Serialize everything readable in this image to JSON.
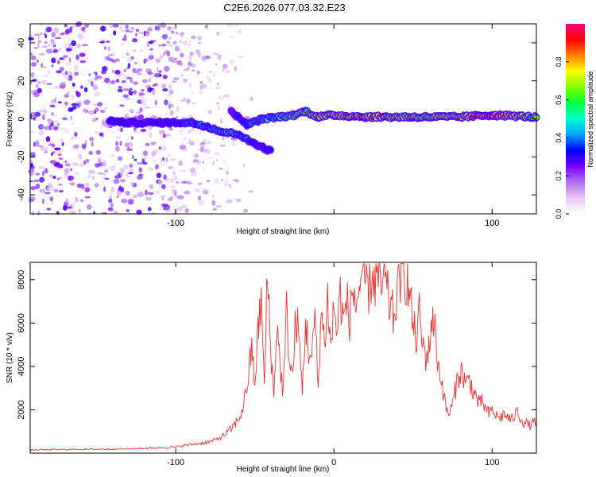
{
  "page_title": "C2E6.2026.077.03.32.E23",
  "chart_data": [
    {
      "type": "heatmap",
      "title": "C2E6.2026.077.03.32.E23",
      "xlabel": "Height of straight line (km)",
      "ylabel": "Frequency (Hz)",
      "xlim": [
        -192,
        128
      ],
      "ylim": [
        -50,
        50
      ],
      "x_ticks": [
        -100,
        0,
        100
      ],
      "x_tick_labels": [
        "-100",
        "",
        "100"
      ],
      "y_ticks": [
        -40,
        -20,
        0,
        20,
        40
      ],
      "y_tick_labels": [
        "-40",
        "-20",
        "0",
        "20",
        "40"
      ],
      "colorbar": {
        "label": "Normalized spectral amplitude",
        "range": [
          0,
          1
        ],
        "ticks": [
          0.0,
          0.2,
          0.4,
          0.6,
          0.8
        ],
        "tick_labels": [
          "0.0",
          "0.2",
          "0.4",
          "0.6",
          "0.8"
        ],
        "colors": [
          "#ffffff",
          "#e8c8f4",
          "#b070ee",
          "#7a00ff",
          "#0000ff",
          "#00a0ff",
          "#00ffd0",
          "#00ff40",
          "#80ff00",
          "#ffff00",
          "#ff8000",
          "#ff0000",
          "#ff0080"
        ]
      },
      "band": {
        "description_points": [
          {
            "x": -142,
            "y": -1,
            "v": 0.35
          },
          {
            "x": -132,
            "y": -2,
            "v": 0.3
          },
          {
            "x": -105,
            "y": -2,
            "v": 0.3
          },
          {
            "x": -90,
            "y": -2,
            "v": 0.4
          },
          {
            "x": -80,
            "y": -4,
            "v": 0.45
          },
          {
            "x": -70,
            "y": -7,
            "v": 0.5
          },
          {
            "x": -60,
            "y": -8,
            "v": 0.45
          },
          {
            "x": -55,
            "y": -11,
            "v": 0.4
          },
          {
            "x": -50,
            "y": -13,
            "v": 0.35
          },
          {
            "x": -45,
            "y": -15,
            "v": 0.3
          },
          {
            "x": -40,
            "y": -17,
            "v": 0.3
          },
          {
            "x": -65,
            "y": 4,
            "v": 0.25
          },
          {
            "x": -55,
            "y": -3,
            "v": 0.4
          },
          {
            "x": -45,
            "y": 0,
            "v": 0.45
          },
          {
            "x": -35,
            "y": 1,
            "v": 0.5
          },
          {
            "x": -25,
            "y": 2,
            "v": 0.6
          },
          {
            "x": -18,
            "y": 4,
            "v": 0.7
          },
          {
            "x": -10,
            "y": 1,
            "v": 0.75
          },
          {
            "x": 0,
            "y": 2,
            "v": 0.8
          },
          {
            "x": 20,
            "y": 1,
            "v": 0.85
          },
          {
            "x": 50,
            "y": 1,
            "v": 0.7
          },
          {
            "x": 80,
            "y": 1,
            "v": 0.75
          },
          {
            "x": 100,
            "y": 2,
            "v": 0.95
          },
          {
            "x": 128,
            "y": 1,
            "v": 0.6
          }
        ]
      }
    },
    {
      "type": "line",
      "xlabel": "Height of straight line (km)",
      "ylabel": "SNR (10 * v/v)",
      "xlim": [
        -192,
        128
      ],
      "ylim": [
        0,
        8800
      ],
      "x_ticks": [
        -100,
        0,
        100
      ],
      "x_tick_labels": [
        "-100",
        "0",
        "100"
      ],
      "y_ticks": [
        2000,
        4000,
        6000,
        8000
      ],
      "y_tick_labels": [
        "2000",
        "4000",
        "6000",
        "8000"
      ],
      "series": [
        {
          "name": "SNR",
          "color": "#ee3030",
          "points": [
            [
              -192,
              150
            ],
            [
              -170,
              170
            ],
            [
              -150,
              180
            ],
            [
              -130,
              200
            ],
            [
              -110,
              250
            ],
            [
              -100,
              280
            ],
            [
              -95,
              350
            ],
            [
              -90,
              400
            ],
            [
              -85,
              450
            ],
            [
              -80,
              500
            ],
            [
              -75,
              600
            ],
            [
              -70,
              800
            ],
            [
              -65,
              1100
            ],
            [
              -60,
              1600
            ],
            [
              -57,
              2200
            ],
            [
              -54,
              3600
            ],
            [
              -52,
              4800
            ],
            [
              -50,
              3200
            ],
            [
              -48,
              5500
            ],
            [
              -46,
              7200
            ],
            [
              -44,
              3000
            ],
            [
              -42,
              8300
            ],
            [
              -40,
              5000
            ],
            [
              -38,
              2500
            ],
            [
              -36,
              6200
            ],
            [
              -34,
              4000
            ],
            [
              -32,
              2800
            ],
            [
              -30,
              6500
            ],
            [
              -28,
              4200
            ],
            [
              -26,
              3500
            ],
            [
              -24,
              6400
            ],
            [
              -22,
              5200
            ],
            [
              -20,
              2800
            ],
            [
              -18,
              6000
            ],
            [
              -16,
              4800
            ],
            [
              -14,
              4200
            ],
            [
              -12,
              6400
            ],
            [
              -10,
              3000
            ],
            [
              -8,
              6600
            ],
            [
              -6,
              5000
            ],
            [
              -4,
              7200
            ],
            [
              -2,
              4800
            ],
            [
              0,
              6800
            ],
            [
              2,
              5500
            ],
            [
              4,
              7400
            ],
            [
              6,
              6000
            ],
            [
              8,
              7000
            ],
            [
              10,
              6200
            ],
            [
              12,
              7600
            ],
            [
              14,
              6800
            ],
            [
              16,
              7700
            ],
            [
              18,
              7200
            ],
            [
              20,
              8100
            ],
            [
              22,
              7600
            ],
            [
              24,
              8300
            ],
            [
              26,
              7800
            ],
            [
              28,
              8200
            ],
            [
              30,
              7600
            ],
            [
              32,
              8000
            ],
            [
              34,
              7200
            ],
            [
              36,
              6700
            ],
            [
              38,
              6200
            ],
            [
              40,
              7400
            ],
            [
              42,
              8300
            ],
            [
              44,
              8500
            ],
            [
              46,
              8100
            ],
            [
              48,
              7200
            ],
            [
              50,
              6000
            ],
            [
              52,
              5200
            ],
            [
              54,
              6400
            ],
            [
              56,
              5000
            ],
            [
              58,
              4500
            ],
            [
              60,
              4700
            ],
            [
              62,
              6400
            ],
            [
              64,
              5600
            ],
            [
              66,
              4000
            ],
            [
              68,
              3400
            ],
            [
              70,
              2400
            ],
            [
              72,
              1800
            ],
            [
              74,
              2000
            ],
            [
              76,
              2600
            ],
            [
              78,
              3400
            ],
            [
              80,
              3800
            ],
            [
              82,
              3500
            ],
            [
              84,
              3200
            ],
            [
              86,
              3400
            ],
            [
              88,
              2800
            ],
            [
              90,
              2600
            ],
            [
              92,
              2200
            ],
            [
              94,
              2400
            ],
            [
              96,
              2000
            ],
            [
              98,
              1800
            ],
            [
              100,
              2000
            ],
            [
              104,
              1600
            ],
            [
              108,
              1800
            ],
            [
              112,
              1500
            ],
            [
              116,
              1900
            ],
            [
              120,
              1400
            ],
            [
              124,
              1300
            ],
            [
              128,
              1500
            ]
          ]
        }
      ]
    }
  ]
}
